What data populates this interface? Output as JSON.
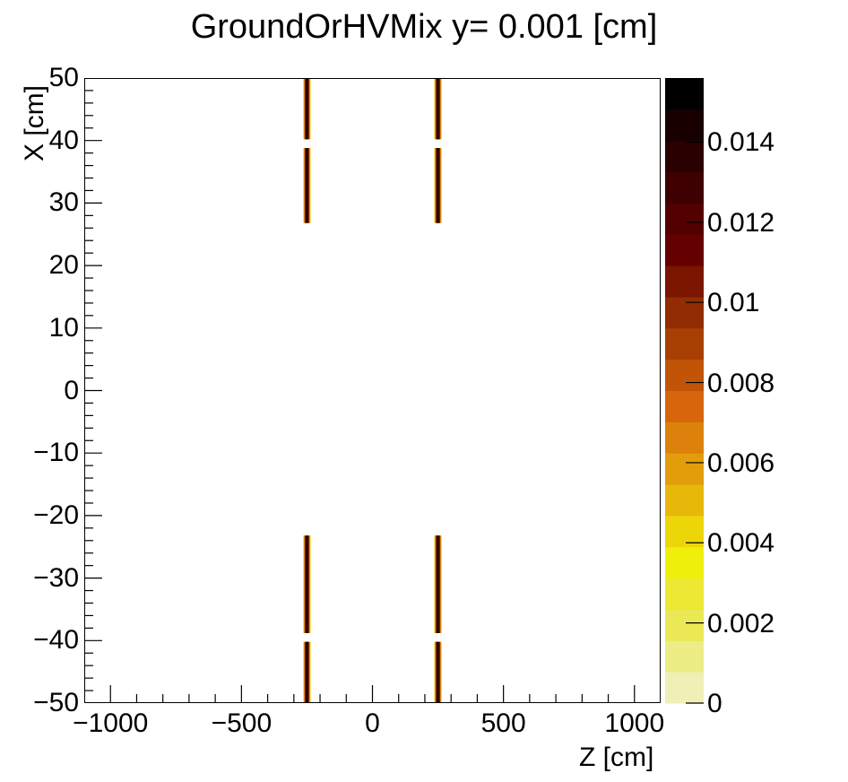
{
  "chart_data": {
    "type": "heatmap",
    "title": "GroundOrHVMix y=  0.001 [cm]",
    "xlabel": "Z [cm]",
    "ylabel": "X [cm]",
    "xlim": [
      -1100,
      1100
    ],
    "ylim": [
      -50,
      50
    ],
    "zlim": [
      0,
      0.0156
    ],
    "x_ticks": [
      -1000,
      -500,
      0,
      500,
      1000
    ],
    "x_tick_labels": [
      "−1000",
      "−500",
      "0",
      "500",
      "1000"
    ],
    "y_ticks": [
      50,
      40,
      30,
      20,
      10,
      0,
      -10,
      -20,
      -30,
      -40,
      -50
    ],
    "y_tick_labels": [
      "50",
      "40",
      "30",
      "20",
      "10",
      "0",
      "−10",
      "−20",
      "−30",
      "−40",
      "−50"
    ],
    "z_ticks": [
      0,
      0.002,
      0.004,
      0.006,
      0.008,
      0.01,
      0.012,
      0.014
    ],
    "z_tick_labels": [
      "0",
      "0.002",
      "0.004",
      "0.006",
      "0.008",
      "0.01",
      "0.012",
      "0.014"
    ],
    "palette": [
      "#f0efb6",
      "#eced84",
      "#eae854",
      "#ece833",
      "#efef0c",
      "#ecd60a",
      "#e7b70a",
      "#e19d0a",
      "#dc820c",
      "#d6650c",
      "#c25408",
      "#a84004",
      "#922c02",
      "#7a1600",
      "#650000",
      "#540000",
      "#3e0000",
      "#2a0000",
      "#180000",
      "#000000"
    ],
    "regions": [
      {
        "z_center": -250,
        "z_width": 28,
        "x_from": 40.2,
        "x_to": 50,
        "value": "max (core ~0.015), edges low"
      },
      {
        "z_center": -250,
        "z_width": 28,
        "x_from": 26.8,
        "x_to": 38.8,
        "value": "max (core ~0.015), edges low"
      },
      {
        "z_center": -250,
        "z_width": 28,
        "x_from": -38.8,
        "x_to": -23.2,
        "value": "max (core ~0.015), edges low"
      },
      {
        "z_center": -250,
        "z_width": 28,
        "x_from": -50,
        "x_to": -40.2,
        "value": "max (core ~0.015), edges low"
      },
      {
        "z_center": 250,
        "z_width": 28,
        "x_from": 40.2,
        "x_to": 50,
        "value": "max (core ~0.015), edges low"
      },
      {
        "z_center": 250,
        "z_width": 28,
        "x_from": 26.8,
        "x_to": 38.8,
        "value": "max (core ~0.015), edges low"
      },
      {
        "z_center": 250,
        "z_width": 28,
        "x_from": -38.8,
        "x_to": -23.2,
        "value": "max (core ~0.015), edges low"
      },
      {
        "z_center": 250,
        "z_width": 28,
        "x_from": -50,
        "x_to": -40.2,
        "value": "max (core ~0.015), edges low"
      }
    ],
    "grid": false,
    "legend": "color palette on right"
  },
  "ui": {
    "title": "GroundOrHVMix y=  0.001 [cm]",
    "xlabel": "Z [cm]",
    "ylabel": "X [cm]"
  }
}
